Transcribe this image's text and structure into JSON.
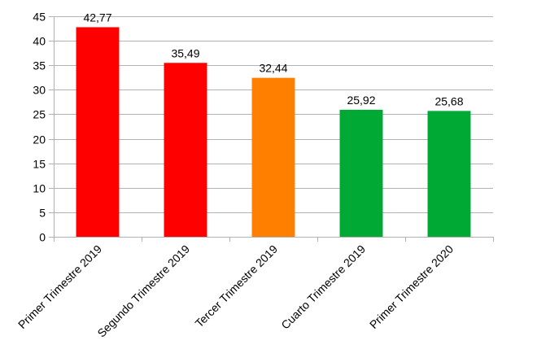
{
  "chart_data": {
    "type": "bar",
    "categories": [
      "Primer Trimestre 2019",
      "Segundo Trimestre 2019",
      "Tercer Trimestre 2019",
      "Cuarto Trimestre 2019",
      "Primer Trimestre 2020"
    ],
    "values": [
      42.77,
      35.49,
      32.44,
      25.92,
      25.68
    ],
    "value_labels": [
      "42,77",
      "35,49",
      "32,44",
      "25,92",
      "25,68"
    ],
    "bar_colors": [
      "#ff0000",
      "#ff0000",
      "#ff8000",
      "#00a933",
      "#00a933"
    ],
    "y_ticks": [
      "0",
      "5",
      "10",
      "15",
      "20",
      "25",
      "30",
      "35",
      "40",
      "45"
    ],
    "ylim": [
      0,
      45
    ],
    "title": "",
    "xlabel": "",
    "ylabel": "",
    "grid": true,
    "legend": "none"
  }
}
